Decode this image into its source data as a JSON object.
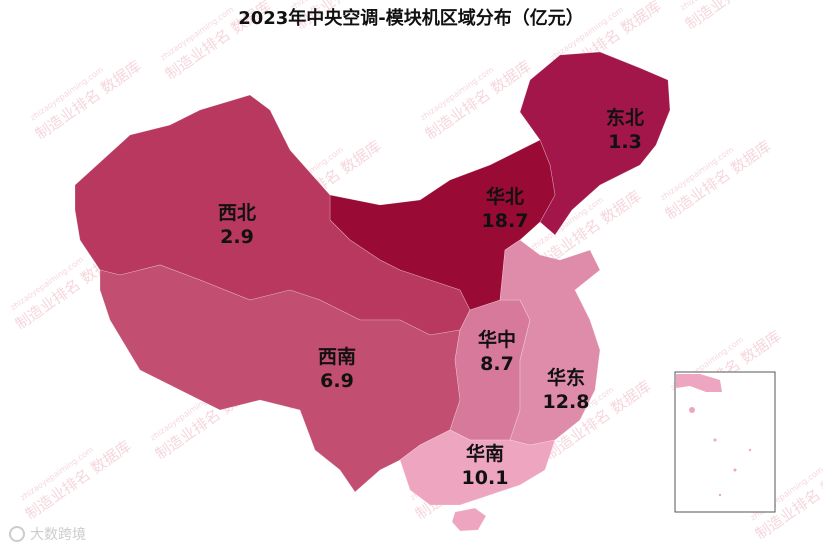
{
  "chart_data": {
    "type": "map",
    "title": "2023年中央空调-模块机区域分布（亿元）",
    "categories": [
      "东北",
      "华北",
      "西北",
      "西南",
      "华中",
      "华东",
      "华南"
    ],
    "values": [
      1.3,
      18.7,
      2.9,
      6.9,
      8.7,
      12.8,
      10.1
    ],
    "colors": [
      "#a3164a",
      "#990a35",
      "#b8385f",
      "#c24e72",
      "#d7799a",
      "#df8cab",
      "#eea6c0"
    ],
    "watermark": "制造业排名 数据库",
    "watermark_url": "zhizaoyepaiming.com",
    "logo": "大数跨境"
  }
}
